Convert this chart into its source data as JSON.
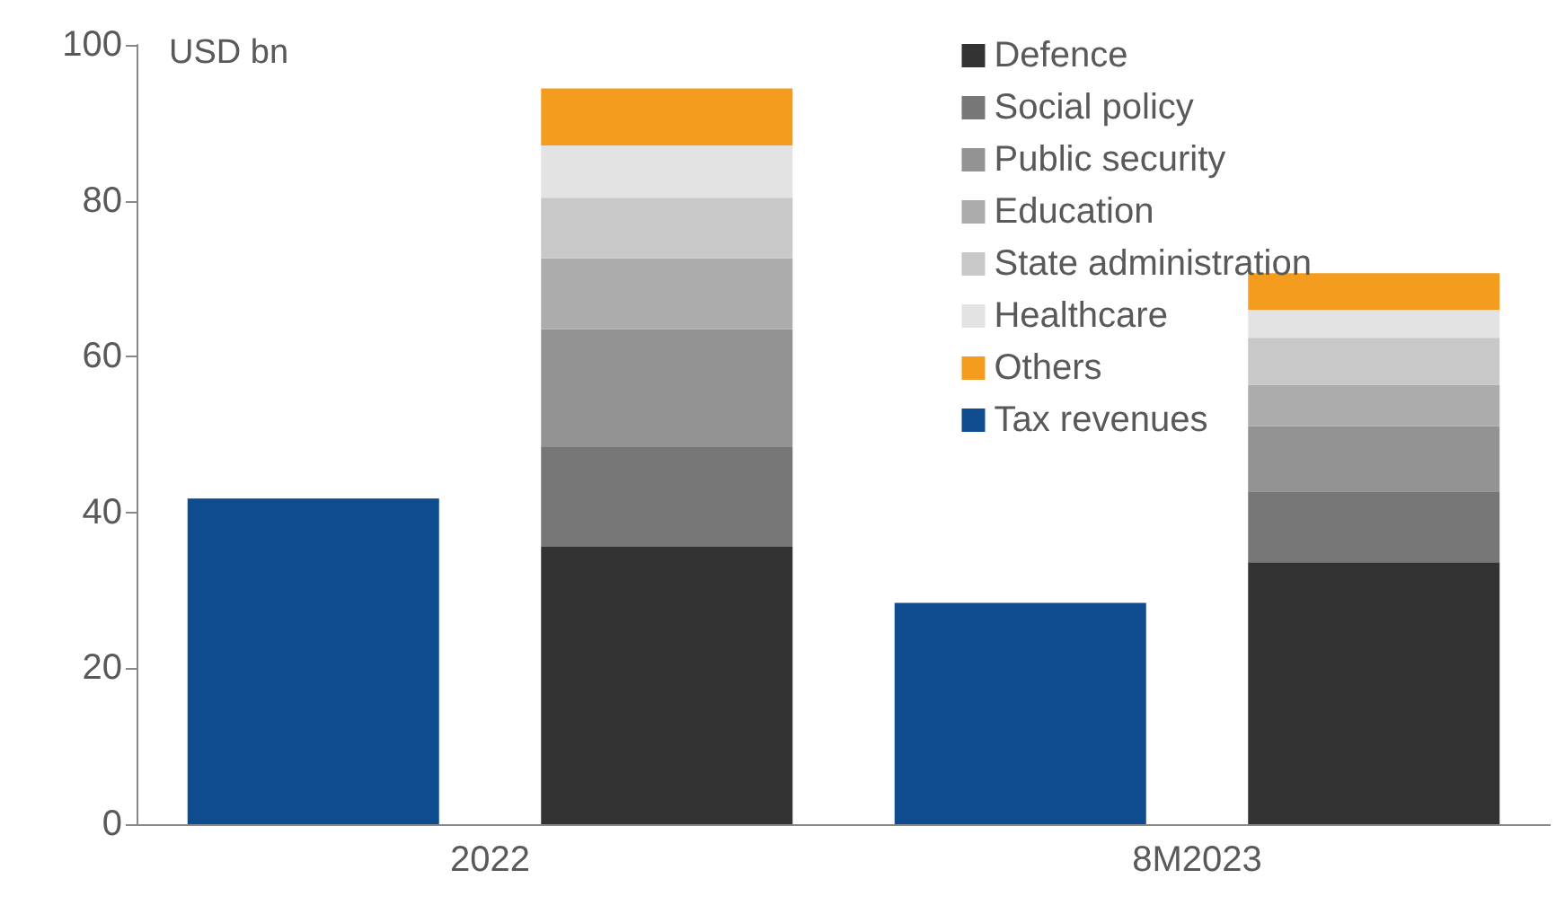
{
  "chart_data": {
    "type": "bar",
    "stacked": true,
    "ylabel": "USD bn",
    "categories": [
      null,
      null,
      null,
      null
    ],
    "annotations": [
      "2022",
      "8M2023"
    ],
    "ylim": [
      0,
      100
    ],
    "yticks": [
      0,
      20,
      40,
      60,
      80,
      100
    ],
    "grid": false,
    "legend": "top right",
    "series": [
      {
        "name": "Defence",
        "color": "#333333",
        "values": [
          null,
          35.6,
          null,
          33.6
        ]
      },
      {
        "name": "Social policy",
        "color": "#777777",
        "values": [
          null,
          12.8,
          null,
          9.1
        ]
      },
      {
        "name": "Public security",
        "color": "#939393",
        "values": [
          null,
          15.1,
          null,
          8.4
        ]
      },
      {
        "name": "Education",
        "color": "#acacac",
        "values": [
          null,
          9.1,
          null,
          5.3
        ]
      },
      {
        "name": "State administration",
        "color": "#c8c8c8",
        "values": [
          null,
          7.8,
          null,
          6.0
        ]
      },
      {
        "name": "Healthcare",
        "color": "#e3e3e3",
        "values": [
          null,
          6.7,
          null,
          3.6
        ]
      },
      {
        "name": "Others",
        "color": "#f39c1e",
        "values": [
          null,
          7.3,
          null,
          4.7
        ]
      },
      {
        "name": "Tax revenues",
        "color": "#0f4c8f",
        "values": [
          41.8,
          null,
          28.4,
          null
        ]
      }
    ]
  }
}
